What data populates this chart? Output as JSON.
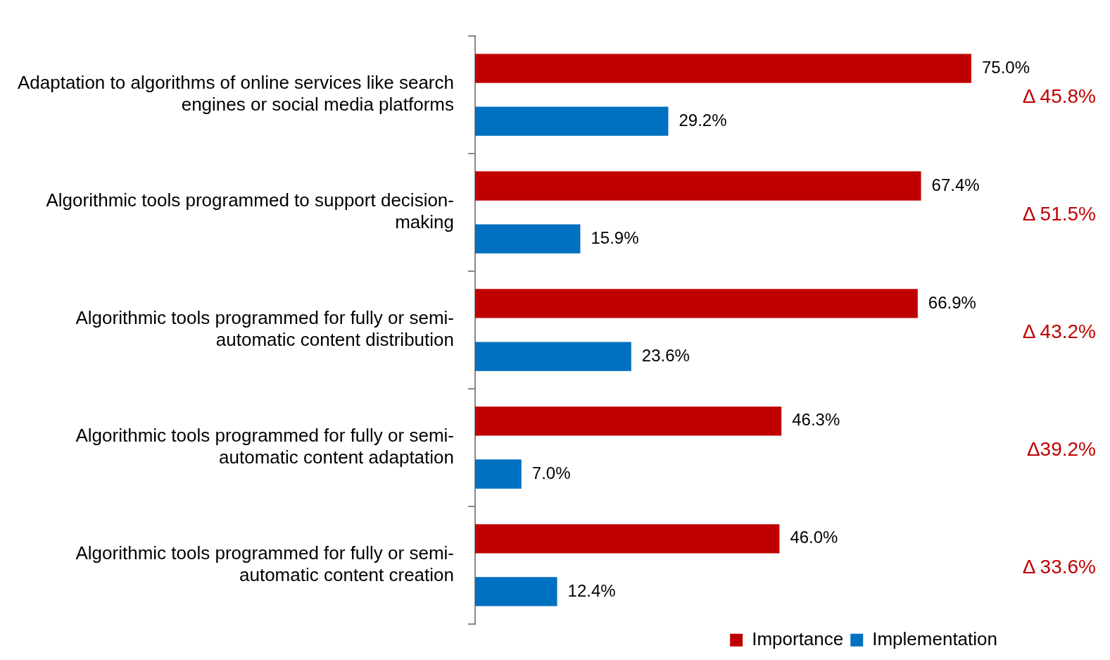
{
  "chart_data": {
    "type": "bar",
    "orientation": "horizontal",
    "legend": "bottom right",
    "categories": [
      "Adaptation to algorithms of online services like search engines or social media platforms",
      "Algorithmic tools programmed to support decision-making",
      "Algorithmic tools programmed for fully or semi-automatic content distribution",
      "Algorithmic tools programmed for fully or semi-automatic content adaptation",
      "Algorithmic tools programmed for fully or semi-automatic content creation"
    ],
    "series": [
      {
        "name": "Importance",
        "color": "#c00000",
        "values": [
          75.0,
          67.4,
          66.9,
          46.3,
          46.0
        ],
        "value_labels": [
          "75.0%",
          "67.4%",
          "66.9%",
          "46.3%",
          "46.0%"
        ]
      },
      {
        "name": "Implementation",
        "color": "#0070c0",
        "values": [
          29.2,
          15.9,
          23.6,
          7.0,
          12.4
        ],
        "value_labels": [
          "29.2%",
          "15.9%",
          "23.6%",
          "7.0%",
          "12.4%"
        ]
      }
    ],
    "annotations": [
      "Δ 45.8%",
      "Δ 51.5%",
      "Δ 43.2%",
      "Δ39.2%",
      "Δ 33.6%"
    ]
  }
}
